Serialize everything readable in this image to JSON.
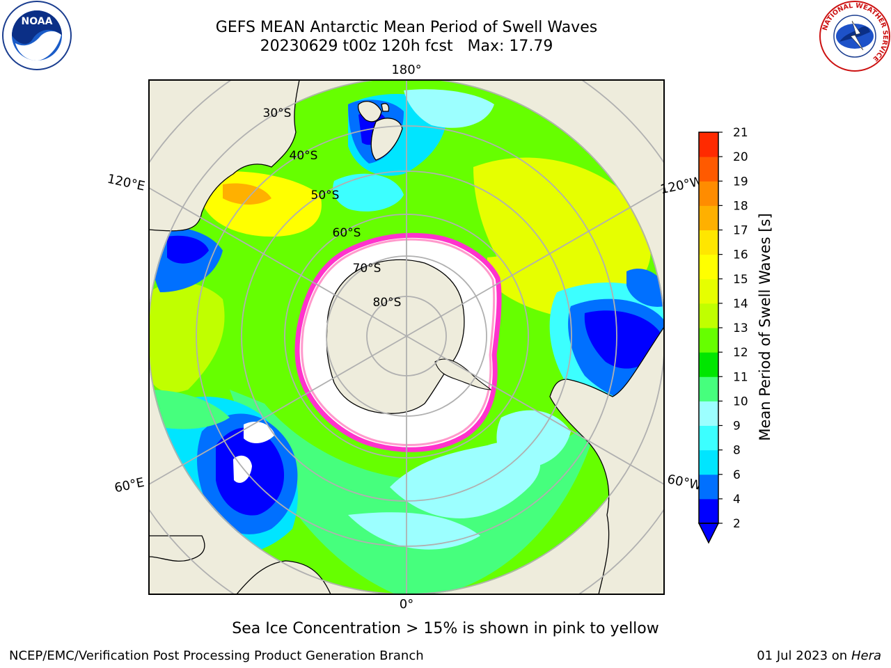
{
  "header": {
    "title_line1": "GEFS MEAN Antarctic Mean Period of Swell Waves",
    "title_line2": "20230629 t00z 120h fcst   Max: 17.79"
  },
  "logos": {
    "left": "noaa-logo",
    "right": "nws-logo",
    "left_text": "NOAA",
    "right_text": "NATIONAL WEATHER SERVICE"
  },
  "map": {
    "longitude_labels": {
      "top": "180°",
      "bottom": "0°",
      "upper_left": "120°E",
      "upper_right": "120°W",
      "lower_left": "60°E",
      "lower_right": "60°W"
    },
    "latitude_labels": [
      "30°S",
      "40°S",
      "50°S",
      "60°S",
      "70°S",
      "80°S"
    ],
    "colors": {
      "land": "#eeecdc",
      "grid": "#b0b0b0",
      "ice_edge": "#ff33cc",
      "ice_inner": "#ff99cc",
      "ice_yellow": "#f5c542"
    }
  },
  "colorbar": {
    "label": "Mean Period of Swell Waves [s]",
    "ticks": [
      "2",
      "4",
      "6",
      "8",
      "9",
      "10",
      "11",
      "12",
      "13",
      "14",
      "15",
      "16",
      "17",
      "18",
      "19",
      "20",
      "21"
    ],
    "colors": [
      "#0000ff",
      "#0070ff",
      "#00e5ff",
      "#3cffff",
      "#9cffff",
      "#46ff7d",
      "#00e600",
      "#66ff00",
      "#c0ff00",
      "#e6ff00",
      "#ffff00",
      "#ffe600",
      "#ffb000",
      "#ff8c00",
      "#ff5a00",
      "#ff2a00"
    ],
    "underflow_color": "#0000ff"
  },
  "footer": {
    "caption": "Sea Ice Concentration > 15% is shown in pink to yellow",
    "left": "NCEP/EMC/Verification Post Processing Product Generation Branch",
    "right_date": "01 Jul 2023 on ",
    "right_machine": "Hera"
  }
}
